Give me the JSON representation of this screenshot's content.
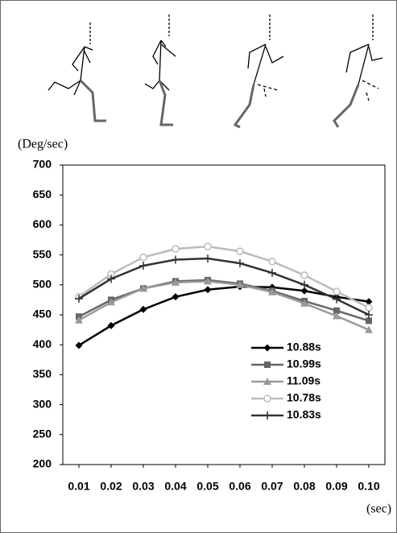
{
  "chart_data": {
    "type": "line",
    "y_label": "(Deg/sec)",
    "x_label": "(sec)",
    "x": [
      0.01,
      0.02,
      0.03,
      0.04,
      0.05,
      0.06,
      0.07,
      0.08,
      0.09,
      0.1
    ],
    "xlim": [
      0.005,
      0.105
    ],
    "xticks": [
      0.01,
      0.02,
      0.03,
      0.04,
      0.05,
      0.06,
      0.07,
      0.08,
      0.09,
      {
        "value": 0.1,
        "label": "0.10"
      }
    ],
    "ylim": [
      200,
      700
    ],
    "yticks": [
      200,
      250,
      300,
      350,
      400,
      450,
      500,
      550,
      600,
      650,
      700
    ],
    "series": [
      {
        "name": "10.88s",
        "color": "#000000",
        "marker": "diamond",
        "values": [
          399,
          432,
          459,
          480,
          492,
          497,
          496,
          490,
          480,
          472
        ]
      },
      {
        "name": "10.99s",
        "color": "#666666",
        "marker": "square",
        "values": [
          447,
          475,
          494,
          506,
          508,
          502,
          490,
          473,
          457,
          440
        ]
      },
      {
        "name": "11.09s",
        "color": "#999999",
        "marker": "triangle",
        "values": [
          441,
          471,
          494,
          504,
          506,
          500,
          488,
          469,
          448,
          425
        ]
      },
      {
        "name": "10.78s",
        "color": "#bbbbbb",
        "marker": "circle",
        "values": [
          480,
          518,
          546,
          560,
          564,
          556,
          539,
          516,
          489,
          462
        ]
      },
      {
        "name": "10.83s",
        "color": "#333333",
        "marker": "plus",
        "values": [
          477,
          510,
          532,
          542,
          544,
          536,
          520,
          500,
          476,
          450
        ]
      }
    ]
  }
}
